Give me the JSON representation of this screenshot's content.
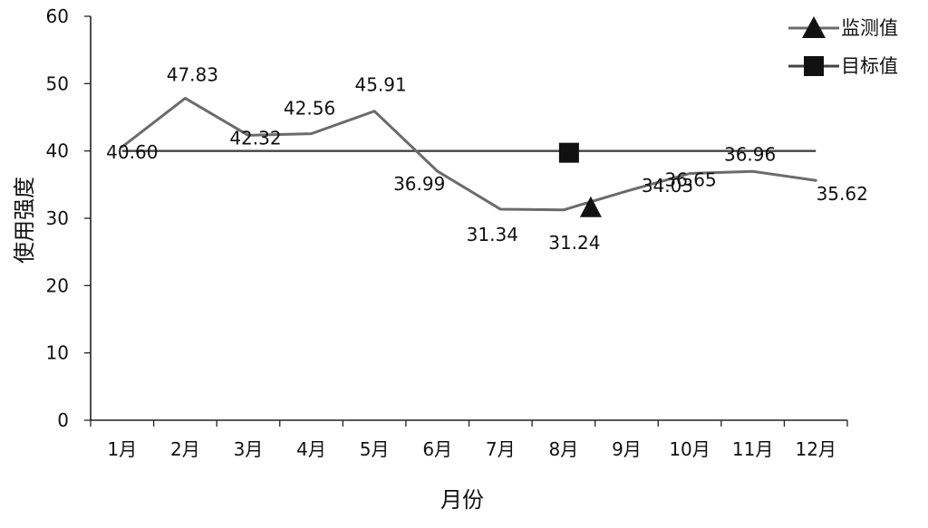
{
  "chart_data": {
    "type": "line",
    "xlabel": "月份",
    "ylabel": "使用强度",
    "categories": [
      "1月",
      "2月",
      "3月",
      "4月",
      "5月",
      "6月",
      "7月",
      "8月",
      "9月",
      "10月",
      "11月",
      "12月"
    ],
    "ylim": [
      0,
      60
    ],
    "yticks": [
      0,
      10,
      20,
      30,
      40,
      50,
      60
    ],
    "series": [
      {
        "name": "监测值",
        "marker": "triangle",
        "color": "#6b6b6b",
        "values": [
          40.6,
          47.83,
          42.32,
          42.56,
          45.91,
          36.99,
          31.34,
          31.24,
          34.03,
          36.65,
          36.96,
          35.62
        ],
        "labels": [
          "40.60",
          "47.83",
          "42.32",
          "42.56",
          "45.91",
          "36.99",
          "31.34",
          "31.24",
          "34.03",
          "36.65",
          "36.96",
          "35.62"
        ]
      },
      {
        "name": "目标值",
        "marker": "square",
        "color": "#444444",
        "values": [
          40,
          40,
          40,
          40,
          40,
          40,
          40,
          40,
          40,
          40,
          40,
          40
        ]
      }
    ],
    "legend": {
      "position": "top-right",
      "items": [
        {
          "label": "监测值",
          "marker": "triangle-icon"
        },
        {
          "label": "目标值",
          "marker": "square-icon"
        }
      ]
    },
    "grid": false
  }
}
